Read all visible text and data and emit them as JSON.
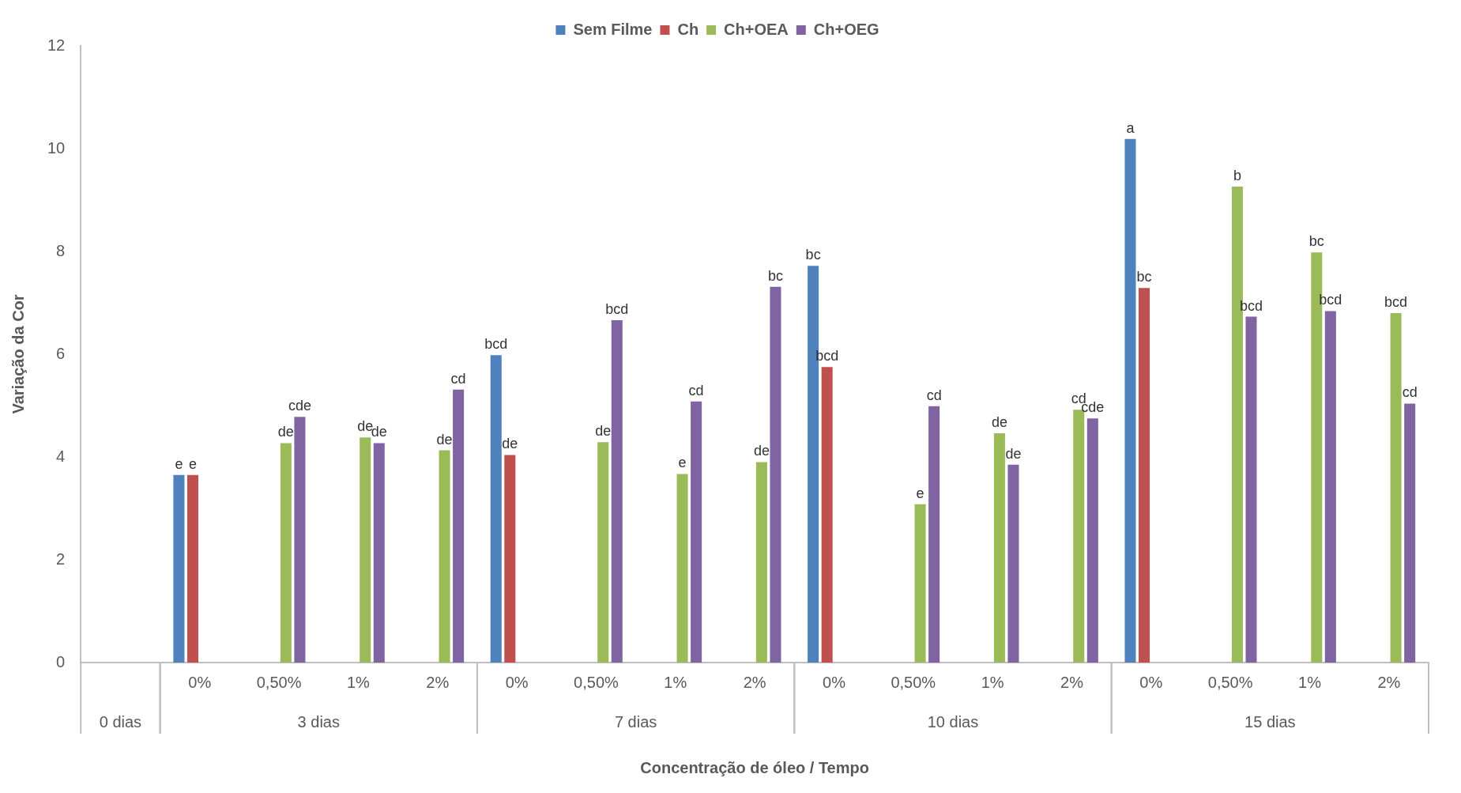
{
  "chart_data": {
    "type": "bar",
    "xlabel": "Concentração de óleo / Tempo",
    "ylabel": "Variação da Cor",
    "categories": [
      null,
      "0%",
      "0,50%",
      "1%",
      "2%",
      "0%",
      "0,50%",
      "1%",
      "2%",
      "0%",
      "0,50%",
      "1%",
      "2%",
      "0%",
      "0,50%",
      "1%",
      "2%"
    ],
    "annotations": [
      "0 dias",
      "3 dias",
      "7 dias",
      "10 dias",
      "15 dias"
    ],
    "series": [
      {
        "name": "Sem Filme",
        "color": "#4f81bd",
        "values": [
          null,
          3.65,
          null,
          null,
          null,
          5.98,
          null,
          null,
          null,
          7.72,
          null,
          null,
          null,
          10.19,
          null,
          null,
          null
        ],
        "value_labels": [
          null,
          "e",
          null,
          null,
          null,
          "bcd",
          null,
          null,
          null,
          "bc",
          null,
          null,
          null,
          "a",
          null,
          null,
          null
        ]
      },
      {
        "name": "Ch",
        "color": "#c0504d",
        "values": [
          null,
          3.65,
          null,
          null,
          null,
          4.04,
          null,
          null,
          null,
          5.75,
          null,
          null,
          null,
          7.29,
          null,
          null,
          null
        ],
        "value_labels": [
          null,
          "e",
          null,
          null,
          null,
          "de",
          null,
          null,
          null,
          "bcd",
          null,
          null,
          null,
          "bc",
          null,
          null,
          null
        ]
      },
      {
        "name": "Ch+OEA",
        "color": "#9bbb59",
        "values": [
          null,
          null,
          4.27,
          4.38,
          4.13,
          null,
          4.29,
          3.67,
          3.9,
          null,
          3.08,
          4.46,
          4.92,
          null,
          9.26,
          7.98,
          6.8
        ],
        "value_labels": [
          null,
          null,
          "de",
          "de",
          "de",
          null,
          "de",
          "e",
          "de",
          null,
          "e",
          "de",
          "cd",
          null,
          "b",
          "bc",
          "bcd"
        ]
      },
      {
        "name": "Ch+OEG",
        "color": "#8064a2",
        "values": [
          null,
          null,
          4.78,
          4.27,
          5.31,
          null,
          6.66,
          5.08,
          7.31,
          null,
          4.99,
          3.85,
          4.75,
          null,
          6.73,
          6.84,
          5.04
        ],
        "value_labels": [
          null,
          null,
          "cde",
          "de",
          "cd",
          null,
          "bcd",
          "cd",
          "bc",
          null,
          "cd",
          "de",
          "cde",
          null,
          "bcd",
          "bcd",
          "cd"
        ]
      }
    ],
    "ylim": [
      0,
      12
    ],
    "yticks": [
      0,
      2,
      4,
      6,
      8,
      10,
      12
    ],
    "grid": false,
    "legend": "top"
  }
}
